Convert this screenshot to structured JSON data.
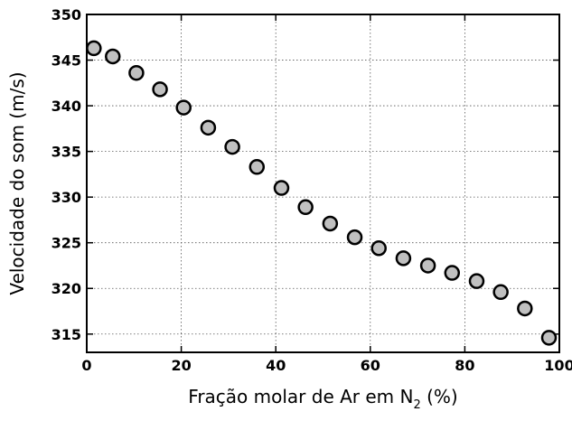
{
  "chart_data": {
    "type": "scatter",
    "title": "",
    "xlabel": "Fração molar de Ar em N",
    "xlabel_subscript": "2",
    "xlabel_suffix": " (%)",
    "ylabel": "Velocidade do som (m/s)",
    "xlim": [
      0,
      100
    ],
    "ylim": [
      313,
      350
    ],
    "xticks": [
      0,
      20,
      40,
      60,
      80,
      100
    ],
    "yticks": [
      315,
      320,
      325,
      330,
      335,
      340,
      345,
      350
    ],
    "grid": true,
    "legend": "none",
    "marker_color": "#c0c0c0",
    "marker_edge_color": "#000000",
    "series": [
      {
        "x": [
          1.5,
          5.5,
          10.5,
          15.5,
          20.5,
          25.7,
          30.8,
          36,
          41.2,
          46.3,
          51.5,
          56.7,
          61.8,
          67,
          72.2,
          77.3,
          82.5,
          87.6,
          92.7,
          97.8
        ],
        "y": [
          346.3,
          345.4,
          343.6,
          341.8,
          339.8,
          337.6,
          335.5,
          333.3,
          331,
          328.9,
          327.1,
          325.6,
          324.4,
          323.3,
          322.5,
          321.7,
          320.8,
          319.6,
          317.8,
          314.6
        ]
      }
    ]
  }
}
